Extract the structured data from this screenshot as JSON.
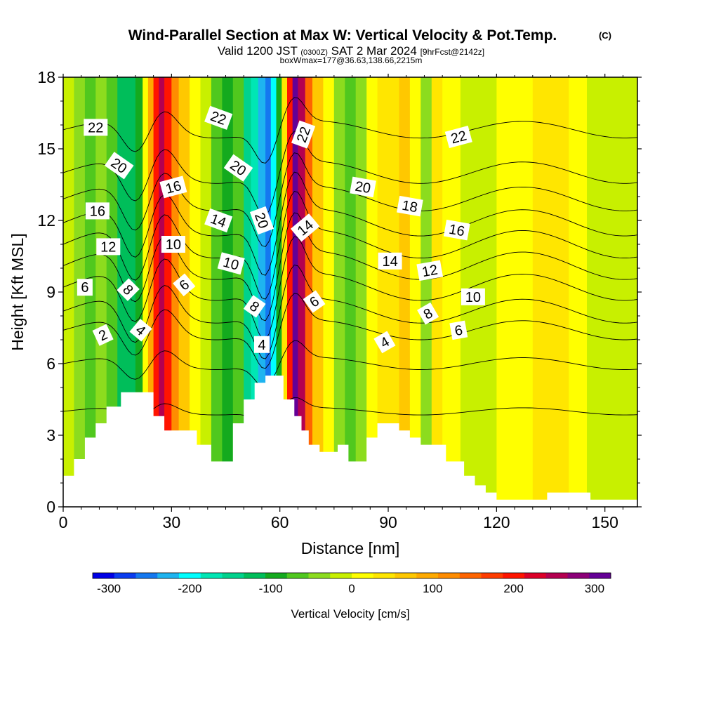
{
  "title": {
    "main": "Wind-Parallel Section at Max W: Vertical Velocity & Pot.Temp.",
    "copyright": "(C)",
    "valid_prefix": "Valid 1200 JST",
    "valid_utc": "(0300Z)",
    "valid_date": "SAT 2 Mar 2024",
    "forecast": "[9hrFcst@2142z]",
    "boxmax": "boxWmax=177@36.63,138.66,2215m"
  },
  "colors": {
    "colorbar": [
      "#0000e6",
      "#0a3cf0",
      "#1478f0",
      "#1eb4f0",
      "#00ffff",
      "#00e6b4",
      "#00d28c",
      "#00be5a",
      "#14aa1e",
      "#50c81e",
      "#8cdc1e",
      "#c8f000",
      "#ffff00",
      "#ffe600",
      "#ffc800",
      "#ffaa00",
      "#ff8c00",
      "#ff6400",
      "#ff3c00",
      "#ff1400",
      "#dc0028",
      "#b40050",
      "#8c0078",
      "#640096"
    ]
  },
  "chart_data": {
    "type": "heatmap",
    "xlabel": "Distance [nm]",
    "ylabel": "Height [Kft MSL]",
    "xlim": [
      0,
      159
    ],
    "ylim": [
      0,
      18
    ],
    "xticks": [
      0,
      30,
      60,
      90,
      120,
      150
    ],
    "yticks": [
      0,
      3,
      6,
      9,
      12,
      15,
      18
    ],
    "colorbar": {
      "label": "Vertical Velocity [cm/s]",
      "ticks": [
        -300,
        -200,
        -100,
        0,
        100,
        200,
        300
      ],
      "range": [
        -320,
        320
      ]
    },
    "vertical_velocity_bands": [
      {
        "x": 0,
        "w": -20
      },
      {
        "x": 3,
        "w": -40
      },
      {
        "x": 6,
        "w": -60
      },
      {
        "x": 9,
        "w": -40
      },
      {
        "x": 12,
        "w": -60
      },
      {
        "x": 15,
        "w": -110
      },
      {
        "x": 18,
        "w": -130
      },
      {
        "x": 20,
        "w": -90
      },
      {
        "x": 22,
        "w": 20
      },
      {
        "x": 23.5,
        "w": 100
      },
      {
        "x": 25,
        "w": 200
      },
      {
        "x": 26.5,
        "w": 240
      },
      {
        "x": 28,
        "w": 200
      },
      {
        "x": 30,
        "w": 120
      },
      {
        "x": 32,
        "w": 60
      },
      {
        "x": 35,
        "w": 10
      },
      {
        "x": 38,
        "w": -20
      },
      {
        "x": 41,
        "w": -60
      },
      {
        "x": 44,
        "w": -100
      },
      {
        "x": 47,
        "w": -80
      },
      {
        "x": 50,
        "w": -140
      },
      {
        "x": 52,
        "w": -180
      },
      {
        "x": 54,
        "w": -220
      },
      {
        "x": 56,
        "w": -260
      },
      {
        "x": 57.5,
        "w": -200
      },
      {
        "x": 59,
        "w": -100
      },
      {
        "x": 60.5,
        "w": 40
      },
      {
        "x": 62,
        "w": 200
      },
      {
        "x": 63.5,
        "w": 300
      },
      {
        "x": 65,
        "w": 240
      },
      {
        "x": 67,
        "w": 140
      },
      {
        "x": 69,
        "w": 60
      },
      {
        "x": 72,
        "w": 10
      },
      {
        "x": 75,
        "w": -40
      },
      {
        "x": 78,
        "w": -80
      },
      {
        "x": 81,
        "w": -30
      },
      {
        "x": 84,
        "w": 20
      },
      {
        "x": 87,
        "w": 50
      },
      {
        "x": 90,
        "w": 30
      },
      {
        "x": 93,
        "w": 70
      },
      {
        "x": 96,
        "w": 20
      },
      {
        "x": 99,
        "w": -30
      },
      {
        "x": 102,
        "w": 40
      },
      {
        "x": 105,
        "w": 10
      },
      {
        "x": 110,
        "w": -20
      },
      {
        "x": 115,
        "w": -10
      },
      {
        "x": 120,
        "w": 0
      },
      {
        "x": 125,
        "w": 20
      },
      {
        "x": 130,
        "w": 50
      },
      {
        "x": 135,
        "w": 40
      },
      {
        "x": 140,
        "w": 10
      },
      {
        "x": 145,
        "w": -10
      },
      {
        "x": 150,
        "w": -20
      },
      {
        "x": 155,
        "w": -10
      },
      {
        "x": 159,
        "w": -10
      }
    ],
    "terrain_kft": [
      [
        0,
        1.3
      ],
      [
        3,
        1.3
      ],
      [
        3,
        2.0
      ],
      [
        6,
        2.0
      ],
      [
        6,
        2.9
      ],
      [
        9,
        2.9
      ],
      [
        9,
        3.5
      ],
      [
        12,
        3.5
      ],
      [
        12,
        4.2
      ],
      [
        16,
        4.2
      ],
      [
        16,
        4.8
      ],
      [
        25,
        4.8
      ],
      [
        25,
        3.8
      ],
      [
        28,
        3.8
      ],
      [
        28,
        3.2
      ],
      [
        37,
        3.2
      ],
      [
        37,
        2.6
      ],
      [
        41,
        2.6
      ],
      [
        41,
        1.9
      ],
      [
        47,
        1.9
      ],
      [
        47,
        3.5
      ],
      [
        50,
        3.5
      ],
      [
        50,
        4.5
      ],
      [
        53,
        4.5
      ],
      [
        53,
        5.2
      ],
      [
        56,
        5.2
      ],
      [
        56,
        5.5
      ],
      [
        61,
        5.5
      ],
      [
        61,
        4.5
      ],
      [
        64,
        4.5
      ],
      [
        64,
        3.8
      ],
      [
        66,
        3.8
      ],
      [
        66,
        3.2
      ],
      [
        68,
        3.2
      ],
      [
        68,
        2.6
      ],
      [
        71,
        2.6
      ],
      [
        71,
        2.3
      ],
      [
        76,
        2.3
      ],
      [
        76,
        2.6
      ],
      [
        79,
        2.6
      ],
      [
        79,
        1.9
      ],
      [
        84,
        1.9
      ],
      [
        84,
        2.9
      ],
      [
        87,
        2.9
      ],
      [
        87,
        3.5
      ],
      [
        93,
        3.5
      ],
      [
        93,
        3.2
      ],
      [
        96,
        3.2
      ],
      [
        96,
        2.9
      ],
      [
        99,
        2.9
      ],
      [
        99,
        2.6
      ],
      [
        106,
        2.6
      ],
      [
        106,
        1.9
      ],
      [
        111,
        1.9
      ],
      [
        111,
        1.3
      ],
      [
        114,
        1.3
      ],
      [
        114,
        0.9
      ],
      [
        117,
        0.9
      ],
      [
        117,
        0.6
      ],
      [
        120,
        0.6
      ],
      [
        120,
        0.3
      ],
      [
        134,
        0.3
      ],
      [
        134,
        0.6
      ],
      [
        146,
        0.6
      ],
      [
        146,
        0.3
      ],
      [
        159,
        0.3
      ]
    ],
    "theta_contours": [
      {
        "level": 2,
        "base": 4.0,
        "amp": 0.6
      },
      {
        "level": 4,
        "base": 6.0,
        "amp": 1.0
      },
      {
        "level": 6,
        "base": 7.4,
        "amp": 1.6
      },
      {
        "level": 8,
        "base": 8.2,
        "amp": 2.0
      },
      {
        "level": 10,
        "base": 9.2,
        "amp": 2.2
      },
      {
        "level": 12,
        "base": 10.1,
        "amp": 2.3
      },
      {
        "level": 14,
        "base": 11.0,
        "amp": 2.3
      },
      {
        "level": 16,
        "base": 11.9,
        "amp": 2.2
      },
      {
        "level": 18,
        "base": 12.9,
        "amp": 2.0
      },
      {
        "level": 20,
        "base": 14.0,
        "amp": 1.8
      },
      {
        "level": 22,
        "base": 15.8,
        "amp": 1.4
      }
    ],
    "contour_labels": [
      {
        "text": "22",
        "x": 9,
        "y": 15.9,
        "rot": 0
      },
      {
        "text": "20",
        "x": 15.5,
        "y": 14.3,
        "rot": 35
      },
      {
        "text": "16",
        "x": 9.5,
        "y": 12.4,
        "rot": 0
      },
      {
        "text": "12",
        "x": 12.5,
        "y": 10.9,
        "rot": 0
      },
      {
        "text": "6",
        "x": 6,
        "y": 9.2,
        "rot": 0
      },
      {
        "text": "8",
        "x": 18,
        "y": 9.1,
        "rot": 45
      },
      {
        "text": "2",
        "x": 11,
        "y": 7.2,
        "rot": -25
      },
      {
        "text": "4",
        "x": 21.5,
        "y": 7.4,
        "rot": 40
      },
      {
        "text": "16",
        "x": 30.5,
        "y": 13.4,
        "rot": -15
      },
      {
        "text": "10",
        "x": 30.5,
        "y": 11.0,
        "rot": 0
      },
      {
        "text": "6",
        "x": 33.5,
        "y": 9.3,
        "rot": -40
      },
      {
        "text": "22",
        "x": 43,
        "y": 16.3,
        "rot": 20
      },
      {
        "text": "20",
        "x": 48.5,
        "y": 14.2,
        "rot": 35
      },
      {
        "text": "14",
        "x": 43,
        "y": 12.0,
        "rot": 20
      },
      {
        "text": "10",
        "x": 46.5,
        "y": 10.2,
        "rot": 15
      },
      {
        "text": "20",
        "x": 55,
        "y": 12.0,
        "rot": 70
      },
      {
        "text": "8",
        "x": 53,
        "y": 8.4,
        "rot": 35
      },
      {
        "text": "4",
        "x": 55,
        "y": 6.8,
        "rot": 0
      },
      {
        "text": "22",
        "x": 66.5,
        "y": 15.6,
        "rot": -70
      },
      {
        "text": "14",
        "x": 67,
        "y": 11.7,
        "rot": -40
      },
      {
        "text": "6",
        "x": 69.5,
        "y": 8.6,
        "rot": -35
      },
      {
        "text": "20",
        "x": 83,
        "y": 13.4,
        "rot": 10
      },
      {
        "text": "18",
        "x": 96,
        "y": 12.6,
        "rot": 10
      },
      {
        "text": "14",
        "x": 90.5,
        "y": 10.3,
        "rot": 0
      },
      {
        "text": "16",
        "x": 109,
        "y": 11.6,
        "rot": 10
      },
      {
        "text": "12",
        "x": 101.5,
        "y": 9.9,
        "rot": -10
      },
      {
        "text": "8",
        "x": 101,
        "y": 8.1,
        "rot": -30
      },
      {
        "text": "4",
        "x": 89,
        "y": 6.9,
        "rot": -30
      },
      {
        "text": "22",
        "x": 109.5,
        "y": 15.5,
        "rot": -15
      },
      {
        "text": "10",
        "x": 113.5,
        "y": 8.8,
        "rot": 0
      },
      {
        "text": "6",
        "x": 109.5,
        "y": 7.4,
        "rot": -10
      }
    ]
  }
}
